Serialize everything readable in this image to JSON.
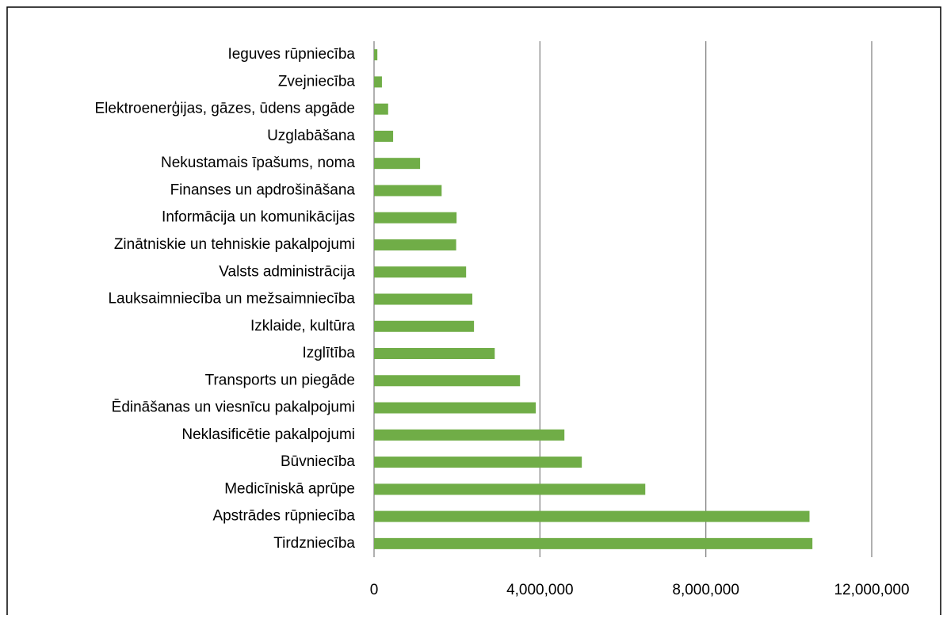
{
  "chart_data": {
    "type": "barh",
    "categories": [
      "Ieguves rūpniecība",
      "Zvejniecība",
      "Elektroenerģijas, gāzes, ūdens apgāde",
      "Uzglabāšana",
      "Nekustamais īpašums, noma",
      "Finanses un apdrošināšana",
      "Informācija un komunikācijas",
      "Zinātniskie un tehniskie pakalpojumi",
      "Valsts administrācija",
      "Lauksaimniecība un mežsaimniecība",
      "Izklaide, kultūra",
      "Izglītība",
      "Transports un piegāde",
      "Ēdināšanas un viesnīcu pakalpojumi",
      "Neklasificētie pakalpojumi",
      "Būvniecība",
      "Medicīniskā aprūpe",
      "Apstrādes rūpniecība",
      "Tirdzniecība"
    ],
    "values": [
      80000,
      190000,
      340000,
      460000,
      1110000,
      1630000,
      1990000,
      1980000,
      2220000,
      2370000,
      2410000,
      2910000,
      3520000,
      3900000,
      4590000,
      5010000,
      6540000,
      10500000,
      10570000
    ],
    "color": "#70ad47",
    "xlim": [
      0,
      12000000
    ],
    "xticks": [
      0,
      {
        "value": 4000000,
        "label": "4,000,000"
      },
      {
        "value": 8000000,
        "label": "8,000,000"
      },
      {
        "value": 12000000,
        "label": "12,000,000"
      }
    ],
    "grid": true
  }
}
